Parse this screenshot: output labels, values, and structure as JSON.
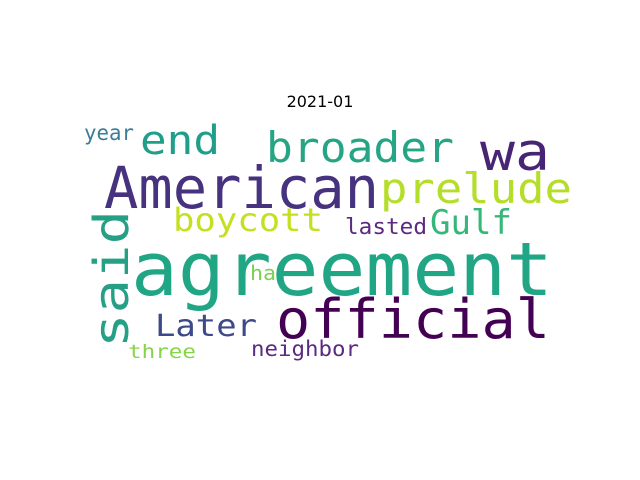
{
  "title": "2021-01",
  "words": [
    {
      "text": "agreement",
      "color": "#21a685"
    },
    {
      "text": "American",
      "color": "#46327e"
    },
    {
      "text": "official",
      "color": "#440154"
    },
    {
      "text": "wa",
      "color": "#482475"
    },
    {
      "text": "broader",
      "color": "#26a585"
    },
    {
      "text": "prelude",
      "color": "#b5de2b"
    },
    {
      "text": "said",
      "color": "#25a085"
    },
    {
      "text": "end",
      "color": "#1f9e89"
    },
    {
      "text": "boycott",
      "color": "#c5e021"
    },
    {
      "text": "Gulf",
      "color": "#35b779"
    },
    {
      "text": "Later",
      "color": "#3e4989"
    },
    {
      "text": "lasted",
      "color": "#5c2a80"
    },
    {
      "text": "neighbor",
      "color": "#5b2a82"
    },
    {
      "text": "year",
      "color": "#3b7c99"
    },
    {
      "text": "ha",
      "color": "#7ad151"
    },
    {
      "text": "three",
      "color": "#86d549"
    }
  ]
}
